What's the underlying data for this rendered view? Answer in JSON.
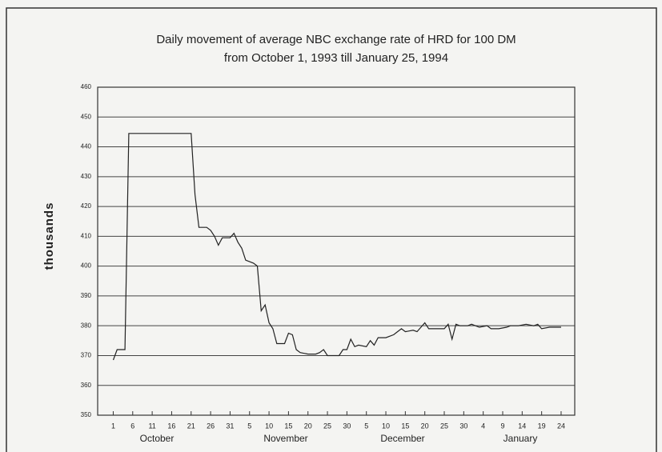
{
  "chart_data": {
    "type": "line",
    "title": "Daily movement of average NBC exchange rate of HRD for 100 DM",
    "subtitle": "from October 1, 1993 till January 25, 1994",
    "y_label": "thousands",
    "x_groups": [
      "October",
      "November",
      "December",
      "January"
    ],
    "xlim": [
      -4,
      118.5
    ],
    "xticks": [
      {
        "value": 0,
        "label": "1"
      },
      {
        "value": 5,
        "label": "6"
      },
      {
        "value": 10,
        "label": "11"
      },
      {
        "value": 15,
        "label": "16"
      },
      {
        "value": 20,
        "label": "21"
      },
      {
        "value": 25,
        "label": "26"
      },
      {
        "value": 30,
        "label": "31"
      },
      {
        "value": 35,
        "label": "5"
      },
      {
        "value": 40,
        "label": "10"
      },
      {
        "value": 45,
        "label": "15"
      },
      {
        "value": 50,
        "label": "20"
      },
      {
        "value": 55,
        "label": "25"
      },
      {
        "value": 60,
        "label": "30"
      },
      {
        "value": 65,
        "label": "5"
      },
      {
        "value": 70,
        "label": "10"
      },
      {
        "value": 75,
        "label": "15"
      },
      {
        "value": 80,
        "label": "20"
      },
      {
        "value": 85,
        "label": "25"
      },
      {
        "value": 90,
        "label": "30"
      },
      {
        "value": 95,
        "label": "4"
      },
      {
        "value": 100,
        "label": "9"
      },
      {
        "value": 105,
        "label": "14"
      },
      {
        "value": 110,
        "label": "19"
      },
      {
        "value": 115,
        "label": "24"
      }
    ],
    "ylim": [
      350,
      460
    ],
    "yticks": [
      350,
      360,
      370,
      380,
      390,
      400,
      410,
      420,
      430,
      440,
      450,
      460
    ],
    "grid": true,
    "color": "#222222",
    "x": [
      0,
      1,
      3,
      4,
      20,
      21,
      22,
      24,
      25,
      26,
      27,
      28,
      30,
      31,
      32,
      33,
      34,
      36,
      37,
      38,
      39,
      40,
      41,
      42,
      44,
      45,
      46,
      47,
      48,
      50,
      52,
      53,
      54,
      55,
      58,
      59,
      60,
      61,
      62,
      63,
      65,
      66,
      67,
      68,
      70,
      72,
      73,
      74,
      75,
      77,
      78,
      80,
      81,
      83,
      85,
      86,
      87,
      88,
      89,
      91,
      92,
      94,
      96,
      97,
      99,
      101,
      102,
      104,
      106,
      108,
      109,
      110,
      112,
      115
    ],
    "values": [
      368.5,
      372,
      372,
      444.5,
      444.5,
      424,
      413,
      413,
      412,
      410,
      407,
      409.5,
      409.5,
      411,
      408,
      406,
      402,
      401,
      400,
      385,
      387,
      381,
      379,
      374,
      374,
      377.5,
      377,
      372,
      371,
      370.5,
      370.5,
      371,
      372,
      370,
      370,
      372,
      372,
      375.5,
      373,
      373.5,
      373,
      375,
      373.5,
      376,
      376,
      377,
      378,
      379,
      378,
      378.5,
      378,
      381,
      379,
      379,
      379,
      380.5,
      375.5,
      380.5,
      380,
      380,
      380.5,
      379.5,
      380,
      379,
      379,
      379.5,
      380,
      380,
      380.5,
      380,
      380.5,
      379,
      379.5,
      379.5
    ]
  }
}
